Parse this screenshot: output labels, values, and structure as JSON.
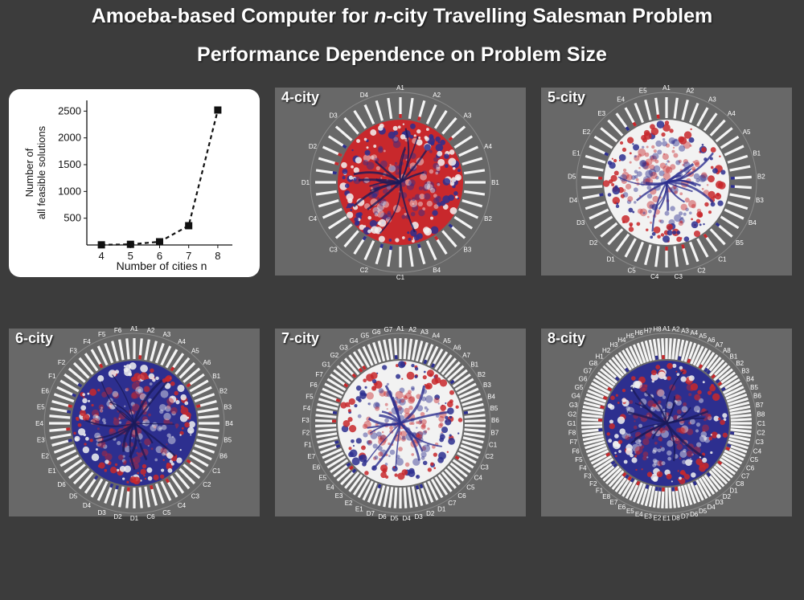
{
  "title": {
    "line1_pre": "Amoeba-based Computer for ",
    "line1_italic": "n",
    "line1_post": "-city Travelling Salesman Problem",
    "line2": "Performance Dependence on Problem Size"
  },
  "chart_data": {
    "type": "line",
    "title": "",
    "xlabel": "Number of cities n",
    "ylabel": "Number of all feasible solutions",
    "x": [
      4,
      5,
      6,
      7,
      8
    ],
    "y": [
      3,
      12,
      60,
      360,
      2520
    ],
    "xticks": [
      "4",
      "5",
      "6",
      "7",
      "8"
    ],
    "yticks": [
      "500",
      "1000",
      "1500",
      "2000",
      "2500"
    ],
    "xlim": [
      3.5,
      8.5
    ],
    "ylim": [
      0,
      2700
    ],
    "line_style": "dashed",
    "marker": "square",
    "grid": false
  },
  "panels": [
    {
      "label": "4-city",
      "core": "red",
      "cities": [
        "A1",
        "A2",
        "A3",
        "A4",
        "B1",
        "B2",
        "B3",
        "B4",
        "C1",
        "C2",
        "C3",
        "C4",
        "D1",
        "D2",
        "D3",
        "D4"
      ]
    },
    {
      "label": "5-city",
      "core": "white",
      "cities": [
        "A1",
        "A2",
        "A3",
        "A4",
        "A5",
        "B1",
        "B2",
        "B3",
        "B4",
        "B5",
        "C1",
        "C2",
        "C3",
        "C4",
        "C5",
        "D1",
        "D2",
        "D3",
        "D4",
        "D5",
        "E1",
        "E2",
        "E3",
        "E4",
        "E5"
      ]
    },
    {
      "label": "6-city",
      "core": "blue",
      "cities": [
        "A1",
        "A2",
        "A3",
        "A4",
        "A5",
        "A6",
        "B1",
        "B2",
        "B3",
        "B4",
        "B5",
        "B6",
        "C1",
        "C2",
        "C3",
        "C4",
        "C5",
        "C6",
        "D1",
        "D2",
        "D3",
        "D4",
        "D5",
        "D6",
        "E1",
        "E2",
        "E3",
        "E4",
        "E5",
        "E6",
        "F1",
        "F2",
        "F3",
        "F4",
        "F5",
        "F6"
      ]
    },
    {
      "label": "7-city",
      "core": "white",
      "cities": [
        "A1",
        "A2",
        "A3",
        "A4",
        "A5",
        "A6",
        "A7",
        "B1",
        "B2",
        "B3",
        "B4",
        "B5",
        "B6",
        "B7",
        "C1",
        "C2",
        "C3",
        "C4",
        "C5",
        "C6",
        "C7",
        "D1",
        "D2",
        "D3",
        "D4",
        "D5",
        "D6",
        "D7",
        "E1",
        "E2",
        "E3",
        "E4",
        "E5",
        "E6",
        "E7",
        "F1",
        "F2",
        "F3",
        "F4",
        "F5",
        "F6",
        "F7",
        "G1",
        "G2",
        "G3",
        "G4",
        "G5",
        "G6",
        "G7"
      ]
    },
    {
      "label": "8-city",
      "core": "blue",
      "cities": [
        "A1",
        "A2",
        "A3",
        "A4",
        "A5",
        "A6",
        "A7",
        "A8",
        "B1",
        "B2",
        "B3",
        "B4",
        "B5",
        "B6",
        "B7",
        "B8",
        "C1",
        "C2",
        "C3",
        "C4",
        "C5",
        "C6",
        "C7",
        "C8",
        "D1",
        "D2",
        "D3",
        "D4",
        "D5",
        "D6",
        "D7",
        "D8",
        "E1",
        "E2",
        "E3",
        "E4",
        "E5",
        "E6",
        "E7",
        "E8",
        "F1",
        "F2",
        "F3",
        "F4",
        "F5",
        "F6",
        "F7",
        "F8",
        "G1",
        "G2",
        "G3",
        "G4",
        "G5",
        "G6",
        "G7",
        "G8",
        "H1",
        "H2",
        "H3",
        "H4",
        "H5",
        "H6",
        "H7",
        "H8"
      ]
    }
  ],
  "colors": {
    "background": "#3c3c3c",
    "panel_bg": "#686868",
    "red": "#c8282c",
    "blue": "#2d2f8f",
    "white": "#f2f2f2"
  }
}
